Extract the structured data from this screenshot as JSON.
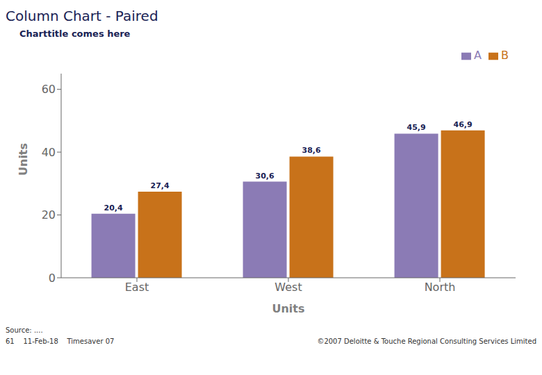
{
  "chart_data": {
    "type": "bar",
    "title": "Column Chart - Paired",
    "subtitle": "Charttitle comes here",
    "xlabel": "Units",
    "ylabel": "Units",
    "categories": [
      "East",
      "West",
      "North"
    ],
    "series": [
      {
        "name": "A",
        "color": "#8B7BB5",
        "values": [
          20.4,
          30.6,
          45.9
        ],
        "value_labels": [
          "20,4",
          "30,6",
          "45,9"
        ]
      },
      {
        "name": "B",
        "color": "#C8721A",
        "values": [
          27.4,
          38.6,
          46.9
        ],
        "value_labels": [
          "27,4",
          "38,6",
          "46,9"
        ]
      }
    ],
    "ylim": [
      0,
      65
    ],
    "yticks": [
      0,
      20,
      40,
      60
    ],
    "grid": false,
    "legend": "upper right",
    "data_labels": true,
    "annotations": [
      "Source: ....",
      "61    11-Feb-18    Timesaver 07",
      "©2007 Deloitte & Touche Regional Consulting Services Limited"
    ]
  }
}
